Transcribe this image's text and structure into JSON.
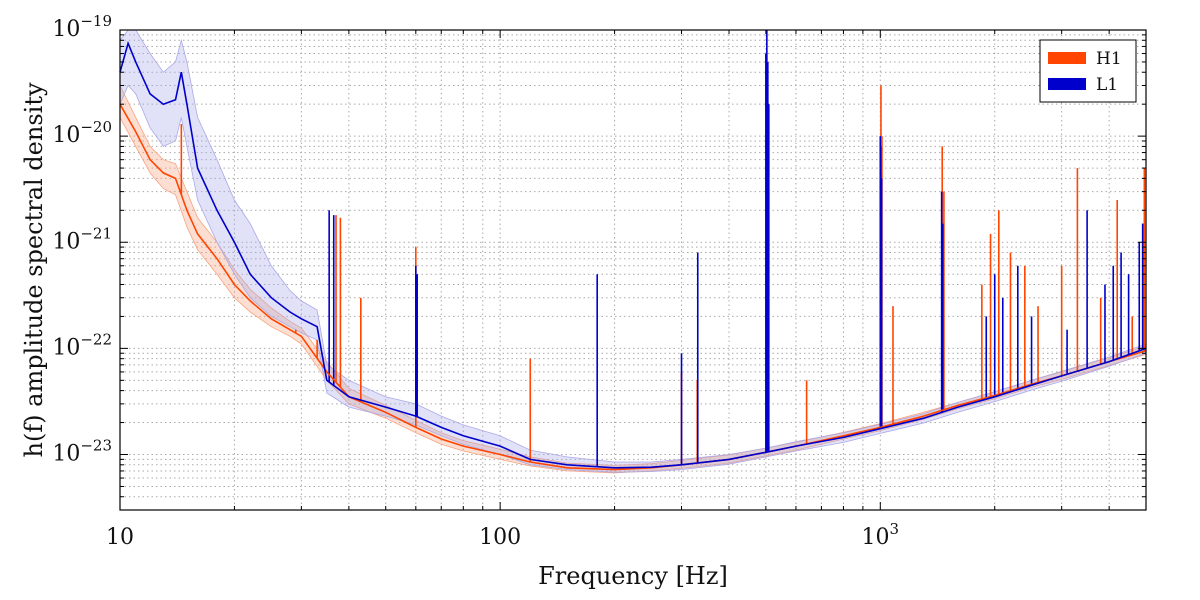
{
  "chart_data": {
    "type": "line",
    "title": "",
    "xlabel": "Frequency [Hz]",
    "ylabel": "h(f) amplitude spectral density",
    "x_scale": "log",
    "y_scale": "log",
    "xlim": [
      10,
      5000
    ],
    "ylim": [
      3e-24,
      1e-19
    ],
    "x_ticks": [
      {
        "value": 10,
        "label": "10"
      },
      {
        "value": 100,
        "label": "100"
      },
      {
        "value": 1000,
        "label": "10",
        "sup": "3"
      }
    ],
    "y_ticks": [
      {
        "value": 1e-19,
        "label": "10",
        "sup": "−19"
      },
      {
        "value": 1e-20,
        "label": "10",
        "sup": "−20"
      },
      {
        "value": 1e-21,
        "label": "10",
        "sup": "−21"
      },
      {
        "value": 1e-22,
        "label": "10",
        "sup": "−22"
      },
      {
        "value": 1e-23,
        "label": "10",
        "sup": "−23"
      }
    ],
    "grid": true,
    "legend_position": "top-right",
    "series": [
      {
        "name": "H1",
        "color": "#ff4500",
        "band_color": "#f7a37f",
        "x": [
          10,
          11,
          12,
          13,
          14,
          15,
          16,
          18,
          20,
          22,
          25,
          28,
          30,
          35,
          40,
          50,
          60,
          70,
          80,
          100,
          120,
          150,
          200,
          250,
          300,
          400,
          500,
          600,
          800,
          1000,
          1300,
          1600,
          2000,
          2500,
          3000,
          4000,
          5000
        ],
        "values": [
          2e-20,
          1.1e-20,
          6e-21,
          4.5e-21,
          4e-21,
          2e-21,
          1.2e-21,
          7e-22,
          4e-22,
          2.8e-22,
          1.9e-22,
          1.5e-22,
          1.3e-22,
          6e-23,
          3.5e-23,
          2.5e-23,
          1.8e-23,
          1.4e-23,
          1.2e-23,
          1e-23,
          8.5e-24,
          7.5e-24,
          7.2e-24,
          7.5e-24,
          8e-24,
          9e-24,
          1.05e-23,
          1.2e-23,
          1.5e-23,
          1.8e-23,
          2.3e-23,
          2.9e-23,
          3.6e-23,
          4.6e-23,
          5.5e-23,
          7.5e-23,
          9.5e-23
        ],
        "band_upper": [
          3e-20,
          1.5e-20,
          8e-21,
          6e-21,
          5.5e-21,
          3e-21,
          1.7e-21,
          1e-21,
          5.5e-22,
          3.6e-22,
          2.4e-22,
          1.8e-22,
          1.55e-22,
          7.5e-23,
          4.2e-23,
          2.9e-23,
          2.1e-23,
          1.6e-23,
          1.35e-23,
          1.12e-23,
          9.5e-24,
          8.3e-24,
          7.9e-24,
          8.2e-24,
          8.8e-24,
          9.9e-24,
          1.15e-23,
          1.3e-23,
          1.62e-23,
          1.95e-23,
          2.5e-23,
          3.1e-23,
          3.9e-23,
          5e-23,
          6e-23,
          8.2e-23,
          1.05e-22
        ],
        "band_lower": [
          1.5e-20,
          8e-21,
          4.5e-21,
          3.2e-21,
          2.8e-21,
          1.4e-21,
          8.5e-22,
          5e-22,
          3e-22,
          2.2e-22,
          1.6e-22,
          1.3e-22,
          1.1e-22,
          5e-23,
          3e-23,
          2.2e-23,
          1.6e-23,
          1.25e-23,
          1.08e-23,
          9e-24,
          7.8e-24,
          7e-24,
          6.7e-24,
          7e-24,
          7.4e-24,
          8.3e-24,
          9.7e-24,
          1.1e-23,
          1.4e-23,
          1.68e-23,
          2.15e-23,
          2.7e-23,
          3.35e-23,
          4.3e-23,
          5.1e-23,
          6.9e-23,
          8.8e-23
        ],
        "spikes": [
          {
            "x": 14.5,
            "y": 1.3e-20
          },
          {
            "x": 29,
            "y": 1.5e-22
          },
          {
            "x": 33,
            "y": 1.2e-22
          },
          {
            "x": 37,
            "y": 1.8e-21
          },
          {
            "x": 38,
            "y": 1.7e-21
          },
          {
            "x": 43,
            "y": 3e-22
          },
          {
            "x": 60,
            "y": 9e-22
          },
          {
            "x": 120,
            "y": 8e-23
          },
          {
            "x": 300,
            "y": 6e-23
          },
          {
            "x": 330,
            "y": 5e-23
          },
          {
            "x": 504,
            "y": 8e-21
          },
          {
            "x": 508,
            "y": 7e-21
          },
          {
            "x": 640,
            "y": 5e-23
          },
          {
            "x": 1004,
            "y": 3e-20
          },
          {
            "x": 1010,
            "y": 1e-20
          },
          {
            "x": 1080,
            "y": 2.5e-22
          },
          {
            "x": 1455,
            "y": 8e-21
          },
          {
            "x": 1470,
            "y": 3e-21
          },
          {
            "x": 1850,
            "y": 4e-22
          },
          {
            "x": 1950,
            "y": 1.2e-21
          },
          {
            "x": 2050,
            "y": 2e-21
          },
          {
            "x": 2200,
            "y": 8e-22
          },
          {
            "x": 2400,
            "y": 6e-22
          },
          {
            "x": 2600,
            "y": 2.5e-22
          },
          {
            "x": 3000,
            "y": 6e-22
          },
          {
            "x": 3300,
            "y": 5e-21
          },
          {
            "x": 3800,
            "y": 3e-22
          },
          {
            "x": 4200,
            "y": 2.5e-21
          },
          {
            "x": 4600,
            "y": 2e-22
          },
          {
            "x": 4950,
            "y": 5e-21
          }
        ]
      },
      {
        "name": "L1",
        "color": "#0000cc",
        "band_color": "#aaaae8",
        "x": [
          10,
          10.5,
          11,
          12,
          13,
          14,
          14.5,
          15,
          16,
          18,
          20,
          22,
          25,
          28,
          30,
          33,
          35,
          40,
          50,
          60,
          70,
          80,
          100,
          120,
          150,
          200,
          250,
          300,
          400,
          500,
          600,
          800,
          1000,
          1300,
          1600,
          2000,
          2500,
          3000,
          4000,
          5000
        ],
        "values": [
          4e-20,
          7.5e-20,
          5e-20,
          2.5e-20,
          2e-20,
          2.2e-20,
          4e-20,
          2e-20,
          5e-21,
          2e-21,
          1e-21,
          5e-22,
          3e-22,
          2.2e-22,
          1.9e-22,
          1.6e-22,
          5e-23,
          3.5e-23,
          2.8e-23,
          2.3e-23,
          1.8e-23,
          1.5e-23,
          1.2e-23,
          9e-24,
          8e-24,
          7.5e-24,
          7.6e-24,
          8e-24,
          9e-24,
          1.05e-23,
          1.2e-23,
          1.45e-23,
          1.75e-23,
          2.2e-23,
          2.8e-23,
          3.5e-23,
          4.5e-23,
          5.5e-23,
          7.5e-23,
          1e-22
        ],
        "band_upper": [
          8e-20,
          1e-19,
          1e-19,
          6e-20,
          4e-20,
          5e-20,
          8e-20,
          5e-20,
          1.5e-20,
          6e-21,
          2.5e-21,
          1.5e-21,
          6e-22,
          3.5e-22,
          2.8e-22,
          2.3e-22,
          7e-23,
          5e-23,
          3.5e-23,
          3e-23,
          2.3e-23,
          1.9e-23,
          1.5e-23,
          1.1e-23,
          9.5e-24,
          8.5e-24,
          8.5e-24,
          9e-24,
          1e-23,
          1.15e-23,
          1.32e-23,
          1.6e-23,
          1.92e-23,
          2.42e-23,
          3.1e-23,
          3.9e-23,
          5e-23,
          6.1e-23,
          8.3e-23,
          1.1e-22
        ],
        "band_lower": [
          2e-20,
          3e-20,
          2.5e-20,
          1.2e-20,
          8e-21,
          9e-21,
          1.5e-20,
          8e-21,
          2.5e-21,
          1e-21,
          5e-22,
          3e-22,
          2e-22,
          1.6e-22,
          1.4e-22,
          1.2e-22,
          3.8e-23,
          2.8e-23,
          2.3e-23,
          1.9e-23,
          1.5e-23,
          1.25e-23,
          1e-23,
          8e-24,
          7.2e-24,
          6.8e-24,
          6.9e-24,
          7.2e-24,
          8.1e-24,
          9.5e-24,
          1.08e-23,
          1.3e-23,
          1.58e-23,
          1.98e-23,
          2.5e-23,
          3.15e-23,
          4.05e-23,
          4.9e-23,
          6.8e-23,
          9e-23
        ],
        "spikes": [
          {
            "x": 35.5,
            "y": 2e-21
          },
          {
            "x": 36.5,
            "y": 1.8e-21
          },
          {
            "x": 60,
            "y": 6e-22
          },
          {
            "x": 60.5,
            "y": 5e-22
          },
          {
            "x": 180,
            "y": 5e-22
          },
          {
            "x": 300,
            "y": 9e-23
          },
          {
            "x": 331,
            "y": 8e-22
          },
          {
            "x": 500,
            "y": 6e-20
          },
          {
            "x": 503,
            "y": 1e-19
          },
          {
            "x": 506,
            "y": 5e-20
          },
          {
            "x": 509,
            "y": 2e-20
          },
          {
            "x": 1000,
            "y": 1e-20
          },
          {
            "x": 1003,
            "y": 8e-21
          },
          {
            "x": 1008,
            "y": 4e-21
          },
          {
            "x": 1450,
            "y": 3e-21
          },
          {
            "x": 1460,
            "y": 1.5e-21
          },
          {
            "x": 1900,
            "y": 2e-22
          },
          {
            "x": 2000,
            "y": 5e-22
          },
          {
            "x": 2100,
            "y": 3e-22
          },
          {
            "x": 2300,
            "y": 6e-22
          },
          {
            "x": 2500,
            "y": 2e-22
          },
          {
            "x": 3100,
            "y": 1.5e-22
          },
          {
            "x": 3500,
            "y": 2e-21
          },
          {
            "x": 3900,
            "y": 4e-22
          },
          {
            "x": 4100,
            "y": 6e-22
          },
          {
            "x": 4300,
            "y": 8e-22
          },
          {
            "x": 4500,
            "y": 5e-22
          },
          {
            "x": 4800,
            "y": 1e-21
          },
          {
            "x": 4900,
            "y": 1.5e-21
          }
        ]
      }
    ]
  }
}
